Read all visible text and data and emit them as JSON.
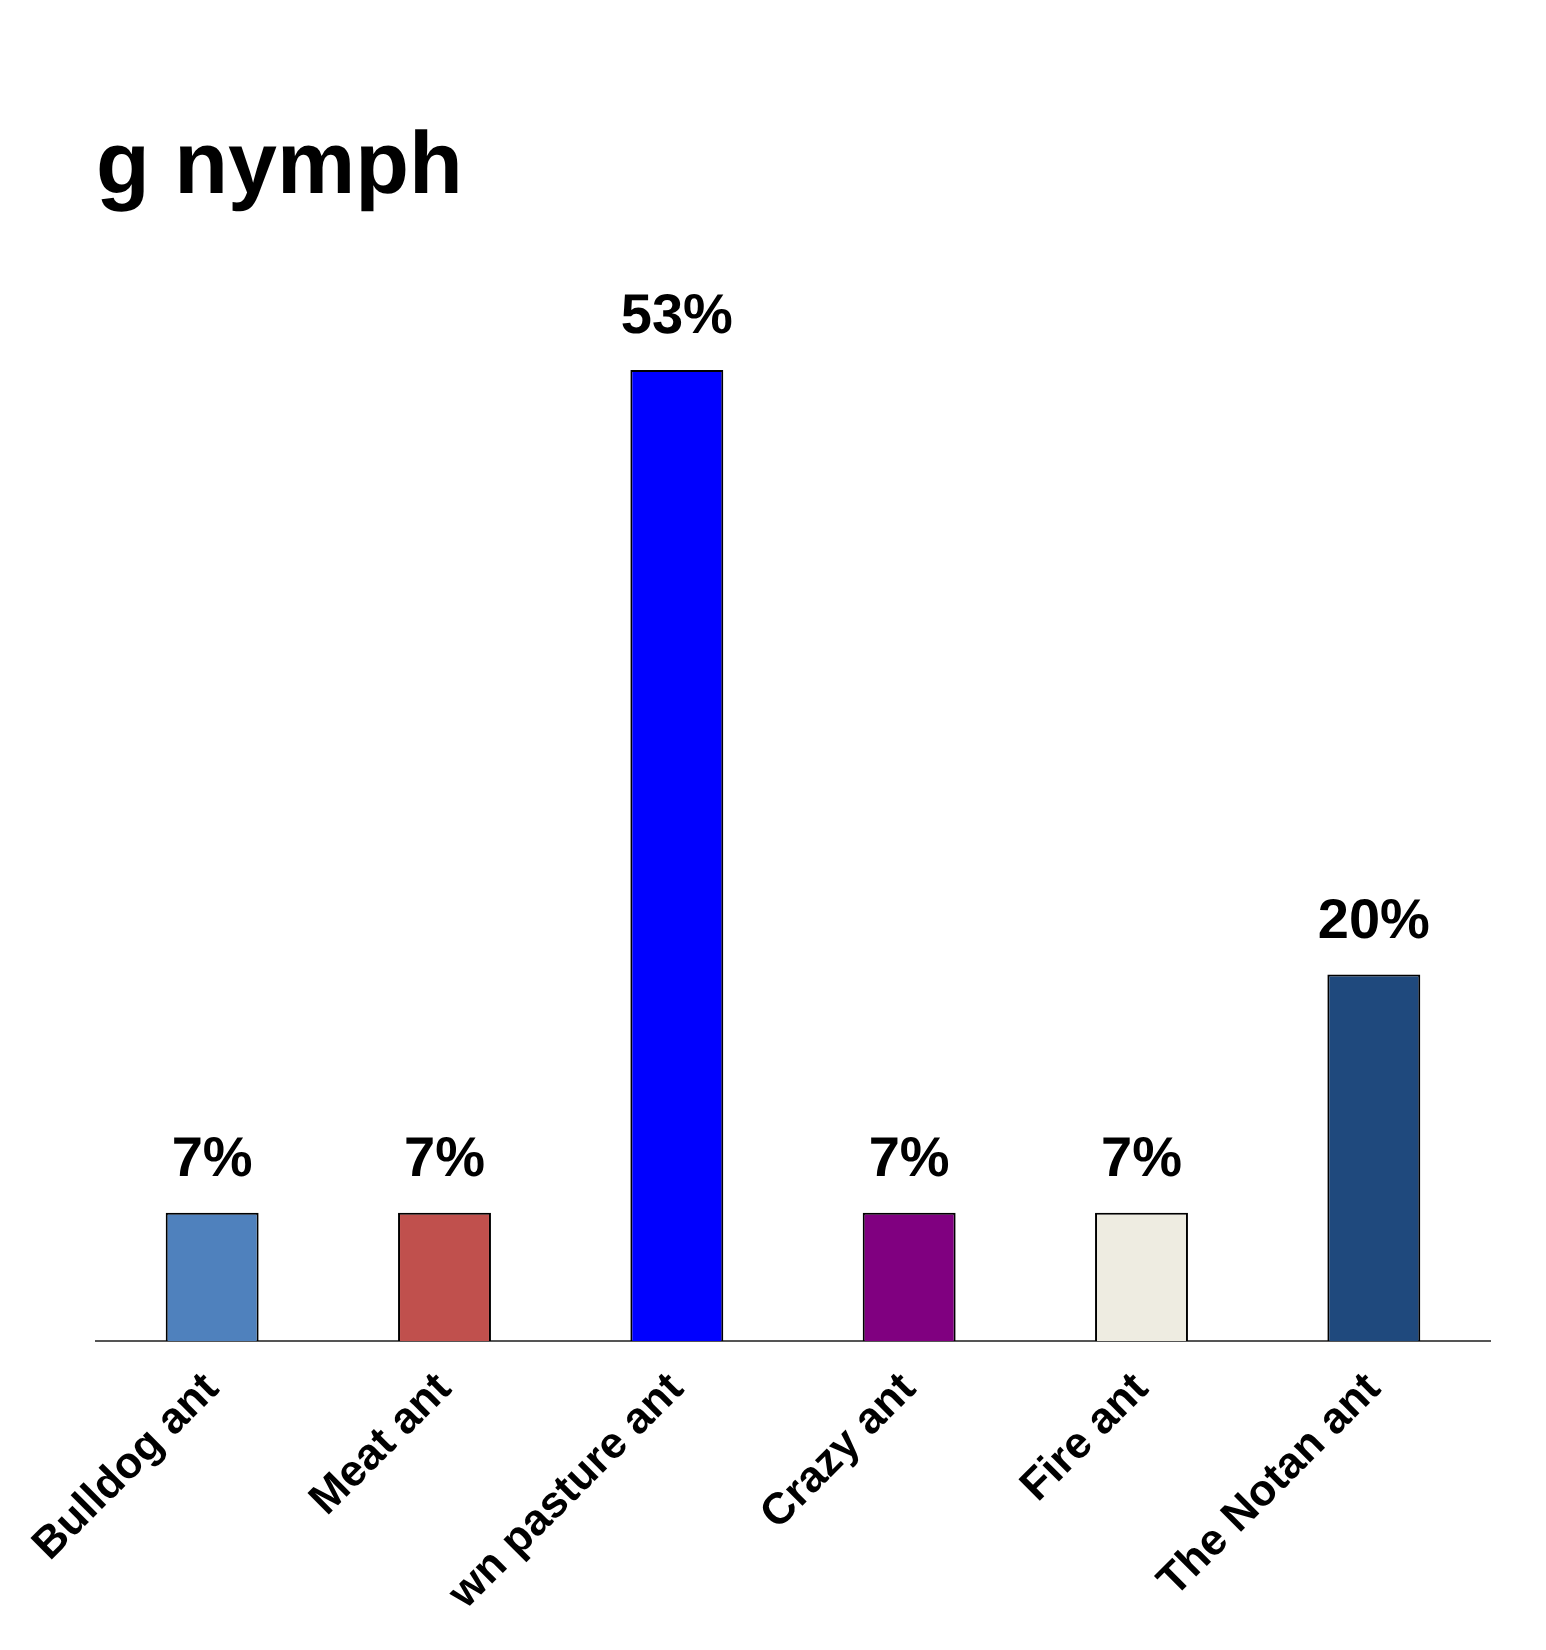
{
  "chart_data": {
    "type": "bar",
    "title": "g nymph",
    "categories": [
      "Bulldog ant",
      "Meat ant",
      "wn pasture ant",
      "Crazy ant",
      "Fire ant",
      "The Notan ant"
    ],
    "values": [
      7,
      7,
      53,
      7,
      7,
      20
    ],
    "colors": [
      "#4f81bd",
      "#c0504d",
      "#0000ff",
      "#800080",
      "#eeece1",
      "#1f497d"
    ],
    "value_labels": [
      "7%",
      "7%",
      "53%",
      "7%",
      "7%",
      "20%"
    ],
    "grid": false,
    "legend": false
  }
}
